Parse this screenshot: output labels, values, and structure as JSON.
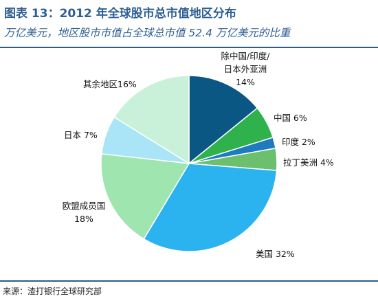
{
  "header": {
    "title": "图表 13：2012 年全球股市总市值地区分布",
    "subtitle": "万亿美元，地区股市市值占全球总市值 52.4 万亿美元的比重"
  },
  "footer": {
    "source": "来源：渣打银行全球研究部"
  },
  "chart_data": {
    "type": "pie",
    "title": "图表 13：2012 年全球股市总市值地区分布",
    "subtitle": "万亿美元，地区股市市值占全球总市值 52.4 万亿美元的比重",
    "slices": [
      {
        "label_lines": [
          "除中国/印度/",
          "日本外亚洲",
          "14%"
        ],
        "value": 14,
        "color": "#0a5784"
      },
      {
        "label_lines": [
          "中国 6%"
        ],
        "value": 6,
        "color": "#2fb24b"
      },
      {
        "label_lines": [
          "印度 2%"
        ],
        "value": 2,
        "color": "#1e7bbf"
      },
      {
        "label_lines": [
          "拉丁美洲 4%"
        ],
        "value": 4,
        "color": "#6cc06d"
      },
      {
        "label_lines": [
          "美国 32%"
        ],
        "value": 32,
        "color": "#2ab3ef"
      },
      {
        "label_lines": [
          "欧盟成员国",
          "18%"
        ],
        "value": 18,
        "color": "#9fe5b0"
      },
      {
        "label_lines": [
          "日本 7%"
        ],
        "value": 7,
        "color": "#a9e5f6"
      },
      {
        "label_lines": [
          "其余地区16%"
        ],
        "value": 16,
        "color": "#c9f0d9"
      }
    ],
    "start_angle_deg": 90,
    "direction": "clockwise",
    "legend": "none (labels beside slices)"
  }
}
